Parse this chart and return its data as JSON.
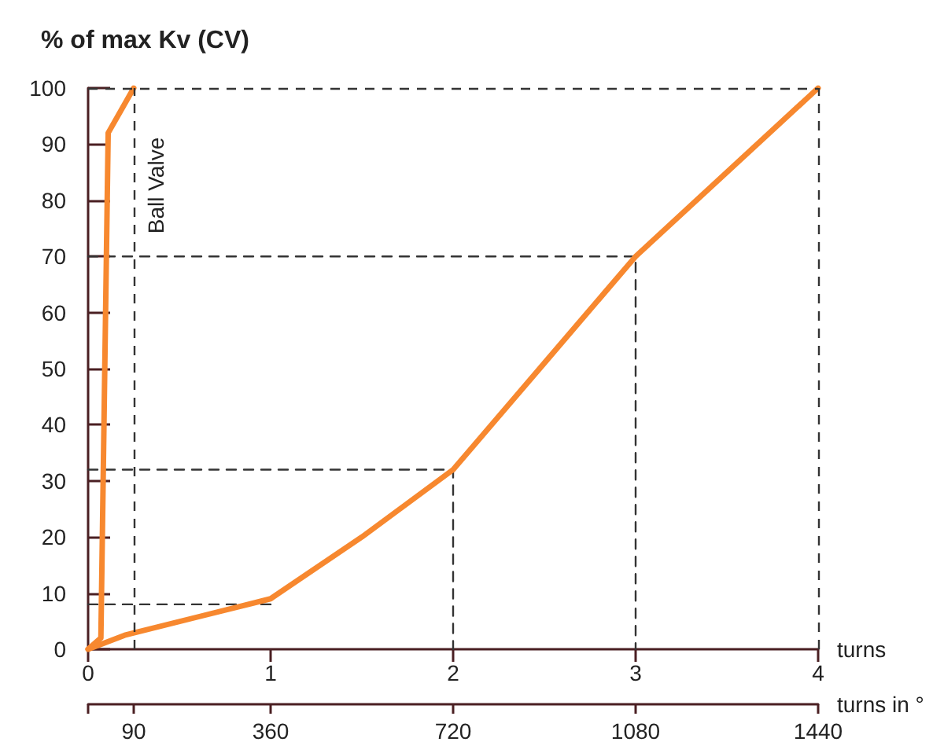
{
  "chart_data": {
    "type": "line",
    "ylabel": "% of max Kv (CV)",
    "xlabel": "turns",
    "x2label": "turns in °",
    "xlim": [
      0,
      4
    ],
    "xticks": [
      0,
      1,
      2,
      3,
      4
    ],
    "x2lim": [
      0,
      1440
    ],
    "x2ticks": [
      {
        "value": 0,
        "label": null
      },
      90,
      360,
      720,
      1080,
      1440
    ],
    "ylim": [
      0,
      100
    ],
    "yticks": [
      0,
      10,
      20,
      30,
      40,
      50,
      60,
      70,
      80,
      90,
      100
    ],
    "grid": false,
    "legend": false,
    "marker": "none",
    "series": [
      {
        "name": "Ball Valve",
        "color": "#f7882f",
        "line_style": "solid",
        "x": [
          0,
          0.07,
          0.11,
          0.25
        ],
        "values": [
          0,
          2,
          92,
          100
        ]
      },
      {
        "color": "#f7882f",
        "line_style": "solid",
        "x": [
          0,
          0.2,
          1,
          1.5,
          2,
          2.5,
          3,
          4
        ],
        "values": [
          0,
          2.5,
          9,
          20,
          32,
          51,
          70,
          100
        ]
      },
      {
        "color": "#333333",
        "line_style": "dashed",
        "x": [
          0,
          1
        ],
        "values": [
          8,
          8
        ]
      },
      {
        "color": "#333333",
        "line_style": "dashed",
        "x": [
          0,
          2,
          2
        ],
        "values": [
          32,
          32,
          0
        ]
      },
      {
        "color": "#333333",
        "line_style": "dashed",
        "x": [
          0,
          3,
          3
        ],
        "values": [
          70,
          70,
          0
        ]
      }
    ],
    "ref_lines": [
      {
        "axis": "y",
        "value": 100,
        "color": "#333333",
        "line_style": "dashed"
      },
      {
        "axis": "x",
        "value": 4,
        "color": "#333333",
        "line_style": "dashed"
      },
      {
        "axis": "x",
        "value": 0.25,
        "color": "#333333",
        "line_style": "dashed"
      }
    ]
  }
}
